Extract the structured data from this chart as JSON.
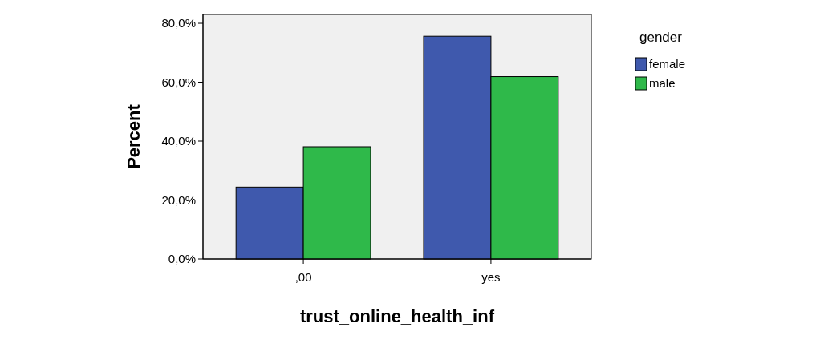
{
  "chart_data": {
    "type": "bar",
    "xlabel": "trust_online_health_inf",
    "ylabel": "Percent",
    "legend_title": "gender",
    "categories": [
      ",00",
      "yes"
    ],
    "series": [
      {
        "name": "female",
        "color": "#3f59ad",
        "values": [
          24.4,
          75.6
        ]
      },
      {
        "name": "male",
        "color": "#2fb94a",
        "values": [
          38.1,
          61.9
        ]
      }
    ],
    "ylim": [
      0,
      83
    ],
    "yticks": [
      {
        "value": 0,
        "label": "0,0%"
      },
      {
        "value": 20,
        "label": "20,0%"
      },
      {
        "value": 40,
        "label": "40,0%"
      },
      {
        "value": 60,
        "label": "60,0%"
      },
      {
        "value": 80,
        "label": "80,0%"
      }
    ],
    "grid": false,
    "legend": "right"
  }
}
